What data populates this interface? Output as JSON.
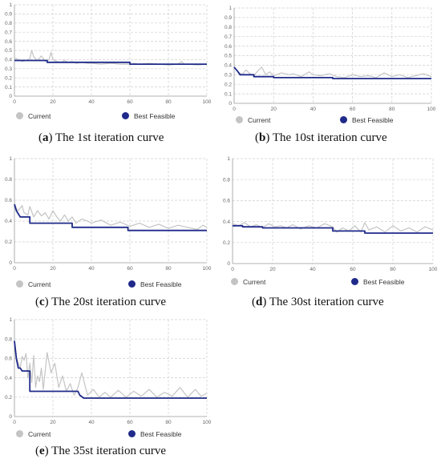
{
  "colors": {
    "current": "#c4c4c4",
    "best": "#1f2a8a"
  },
  "chart_data": [
    {
      "type": "line",
      "caption_letter": "a",
      "caption_text": "The 1st iteration curve",
      "legend": {
        "current": "Current",
        "best": "Best Feasible"
      },
      "xlim": [
        0,
        100
      ],
      "ylim": [
        0,
        1
      ],
      "xticks": [
        "0",
        "20",
        "40",
        "60",
        "80",
        "100"
      ],
      "yticks": [
        "0",
        "0.1",
        "0.2",
        "0.3",
        "0.4",
        "0.5",
        "0.6",
        "0.7",
        "0.8",
        "0.9",
        "1"
      ],
      "grid": true,
      "series": [
        {
          "key": "current",
          "color": "#c4c4c4",
          "x": [
            0,
            2,
            4,
            6,
            8,
            9,
            10,
            12,
            14,
            16,
            18,
            19,
            20,
            22,
            24,
            26,
            28,
            30,
            32,
            35,
            38,
            40,
            45,
            50,
            55,
            60,
            62,
            65,
            70,
            75,
            80,
            85,
            87,
            88,
            90,
            95,
            100
          ],
          "values": [
            0.42,
            0.4,
            0.38,
            0.39,
            0.41,
            0.5,
            0.43,
            0.39,
            0.44,
            0.38,
            0.4,
            0.48,
            0.4,
            0.38,
            0.37,
            0.39,
            0.37,
            0.38,
            0.36,
            0.37,
            0.36,
            0.36,
            0.35,
            0.36,
            0.35,
            0.35,
            0.36,
            0.35,
            0.36,
            0.35,
            0.34,
            0.35,
            0.38,
            0.35,
            0.35,
            0.34,
            0.35
          ]
        },
        {
          "key": "best",
          "color": "#1f2a8a",
          "x": [
            0,
            17,
            17,
            60,
            60,
            100
          ],
          "values": [
            0.39,
            0.39,
            0.37,
            0.37,
            0.35,
            0.35
          ]
        }
      ]
    },
    {
      "type": "line",
      "caption_letter": "b",
      "caption_text": "The 10st iteration curve",
      "legend": {
        "current": "Current",
        "best": "Best Feasible"
      },
      "xlim": [
        0,
        100
      ],
      "ylim": [
        0,
        1
      ],
      "xticks": [
        "0",
        "20",
        "40",
        "60",
        "80",
        "100"
      ],
      "yticks": [
        "0",
        "0.1",
        "0.2",
        "0.3",
        "0.4",
        "0.5",
        "0.6",
        "0.7",
        "0.8",
        "0.9",
        "1"
      ],
      "grid": true,
      "series": [
        {
          "key": "current",
          "color": "#c4c4c4",
          "x": [
            0,
            2,
            4,
            6,
            8,
            10,
            12,
            14,
            16,
            18,
            20,
            24,
            28,
            30,
            34,
            38,
            40,
            44,
            48,
            52,
            56,
            60,
            64,
            68,
            72,
            76,
            80,
            84,
            88,
            92,
            96,
            100
          ],
          "values": [
            0.38,
            0.33,
            0.3,
            0.35,
            0.31,
            0.29,
            0.34,
            0.38,
            0.3,
            0.33,
            0.29,
            0.32,
            0.3,
            0.31,
            0.28,
            0.33,
            0.3,
            0.29,
            0.31,
            0.28,
            0.27,
            0.3,
            0.28,
            0.29,
            0.27,
            0.32,
            0.28,
            0.3,
            0.27,
            0.29,
            0.31,
            0.28
          ]
        },
        {
          "key": "best",
          "color": "#1f2a8a",
          "x": [
            0,
            2,
            3,
            10,
            10,
            20,
            20,
            50,
            50,
            100
          ],
          "values": [
            0.38,
            0.33,
            0.3,
            0.3,
            0.28,
            0.28,
            0.27,
            0.27,
            0.26,
            0.26
          ]
        }
      ]
    },
    {
      "type": "line",
      "caption_letter": "c",
      "caption_text": "The 20st iteration curve",
      "legend": {
        "current": "Current",
        "best": "Best Feasible"
      },
      "xlim": [
        0,
        100
      ],
      "ylim": [
        0,
        1
      ],
      "xticks": [
        "0",
        "20",
        "40",
        "60",
        "80",
        "100"
      ],
      "yticks": [
        "0",
        "0.2",
        "0.4",
        "0.6",
        "0.8",
        "1"
      ],
      "grid": true,
      "series": [
        {
          "key": "current",
          "color": "#c4c4c4",
          "x": [
            0,
            1,
            2,
            4,
            5,
            7,
            8,
            10,
            12,
            14,
            16,
            18,
            20,
            22,
            24,
            26,
            28,
            30,
            32,
            35,
            38,
            40,
            45,
            50,
            55,
            60,
            65,
            70,
            75,
            80,
            85,
            90,
            95,
            98,
            100
          ],
          "values": [
            0.58,
            0.52,
            0.5,
            0.55,
            0.48,
            0.46,
            0.54,
            0.44,
            0.5,
            0.45,
            0.48,
            0.42,
            0.5,
            0.44,
            0.4,
            0.46,
            0.4,
            0.44,
            0.38,
            0.42,
            0.4,
            0.38,
            0.41,
            0.36,
            0.39,
            0.35,
            0.38,
            0.34,
            0.37,
            0.33,
            0.36,
            0.34,
            0.32,
            0.36,
            0.34
          ]
        },
        {
          "key": "best",
          "color": "#1f2a8a",
          "x": [
            0,
            1,
            2,
            3,
            8,
            8,
            30,
            30,
            59,
            59,
            100
          ],
          "values": [
            0.56,
            0.5,
            0.47,
            0.44,
            0.44,
            0.38,
            0.38,
            0.34,
            0.34,
            0.31,
            0.31
          ]
        }
      ]
    },
    {
      "type": "line",
      "caption_letter": "d",
      "caption_text": "The 30st iteration curve",
      "legend": {
        "current": "Current",
        "best": "Best Feasible"
      },
      "xlim": [
        0,
        100
      ],
      "ylim": [
        0,
        1
      ],
      "xticks": [
        "0",
        "20",
        "40",
        "60",
        "80",
        "100"
      ],
      "yticks": [
        "0",
        "0.2",
        "0.4",
        "0.6",
        "0.8",
        "1"
      ],
      "grid": true,
      "series": [
        {
          "key": "current",
          "color": "#c4c4c4",
          "x": [
            0,
            3,
            6,
            9,
            12,
            15,
            18,
            21,
            24,
            27,
            30,
            34,
            38,
            42,
            46,
            50,
            52,
            55,
            58,
            61,
            64,
            66,
            68,
            72,
            76,
            80,
            84,
            88,
            92,
            96,
            100
          ],
          "values": [
            0.38,
            0.36,
            0.39,
            0.35,
            0.37,
            0.34,
            0.38,
            0.35,
            0.36,
            0.34,
            0.37,
            0.33,
            0.36,
            0.34,
            0.38,
            0.35,
            0.3,
            0.34,
            0.31,
            0.36,
            0.3,
            0.39,
            0.32,
            0.35,
            0.3,
            0.36,
            0.31,
            0.34,
            0.3,
            0.35,
            0.32
          ]
        },
        {
          "key": "best",
          "color": "#1f2a8a",
          "x": [
            0,
            5,
            5,
            15,
            15,
            50,
            50,
            66,
            66,
            100
          ],
          "values": [
            0.36,
            0.36,
            0.35,
            0.35,
            0.34,
            0.34,
            0.31,
            0.31,
            0.29,
            0.29
          ]
        }
      ]
    },
    {
      "type": "line",
      "caption_letter": "e",
      "caption_text": "The 35st iteration curve",
      "legend": {
        "current": "Current",
        "best": "Best Feasible"
      },
      "xlim": [
        0,
        100
      ],
      "ylim": [
        0,
        1
      ],
      "xticks": [
        "0",
        "20",
        "40",
        "60",
        "80",
        "100"
      ],
      "yticks": [
        "0",
        "0.2",
        "0.4",
        "0.6",
        "0.8",
        "1"
      ],
      "grid": true,
      "series": [
        {
          "key": "current",
          "color": "#c4c4c4",
          "x": [
            0,
            1,
            2,
            3,
            4,
            5,
            6,
            7,
            8,
            9,
            10,
            11,
            12,
            13,
            14,
            15,
            17,
            19,
            21,
            23,
            25,
            27,
            29,
            31,
            33,
            35,
            38,
            41,
            44,
            47,
            50,
            54,
            58,
            62,
            66,
            70,
            74,
            78,
            82,
            86,
            90,
            94,
            97,
            100
          ],
          "values": [
            0.78,
            0.62,
            0.55,
            0.5,
            0.62,
            0.58,
            0.65,
            0.4,
            0.55,
            0.35,
            0.63,
            0.3,
            0.42,
            0.36,
            0.5,
            0.28,
            0.66,
            0.45,
            0.55,
            0.3,
            0.42,
            0.26,
            0.34,
            0.22,
            0.3,
            0.45,
            0.22,
            0.28,
            0.2,
            0.25,
            0.2,
            0.27,
            0.2,
            0.26,
            0.21,
            0.28,
            0.2,
            0.25,
            0.21,
            0.3,
            0.2,
            0.28,
            0.21,
            0.24
          ]
        },
        {
          "key": "best",
          "color": "#1f2a8a",
          "x": [
            0,
            1,
            2,
            3,
            4,
            8,
            8,
            33,
            34,
            36,
            100
          ],
          "values": [
            0.78,
            0.6,
            0.5,
            0.5,
            0.47,
            0.47,
            0.26,
            0.26,
            0.22,
            0.19,
            0.19
          ]
        }
      ]
    }
  ]
}
